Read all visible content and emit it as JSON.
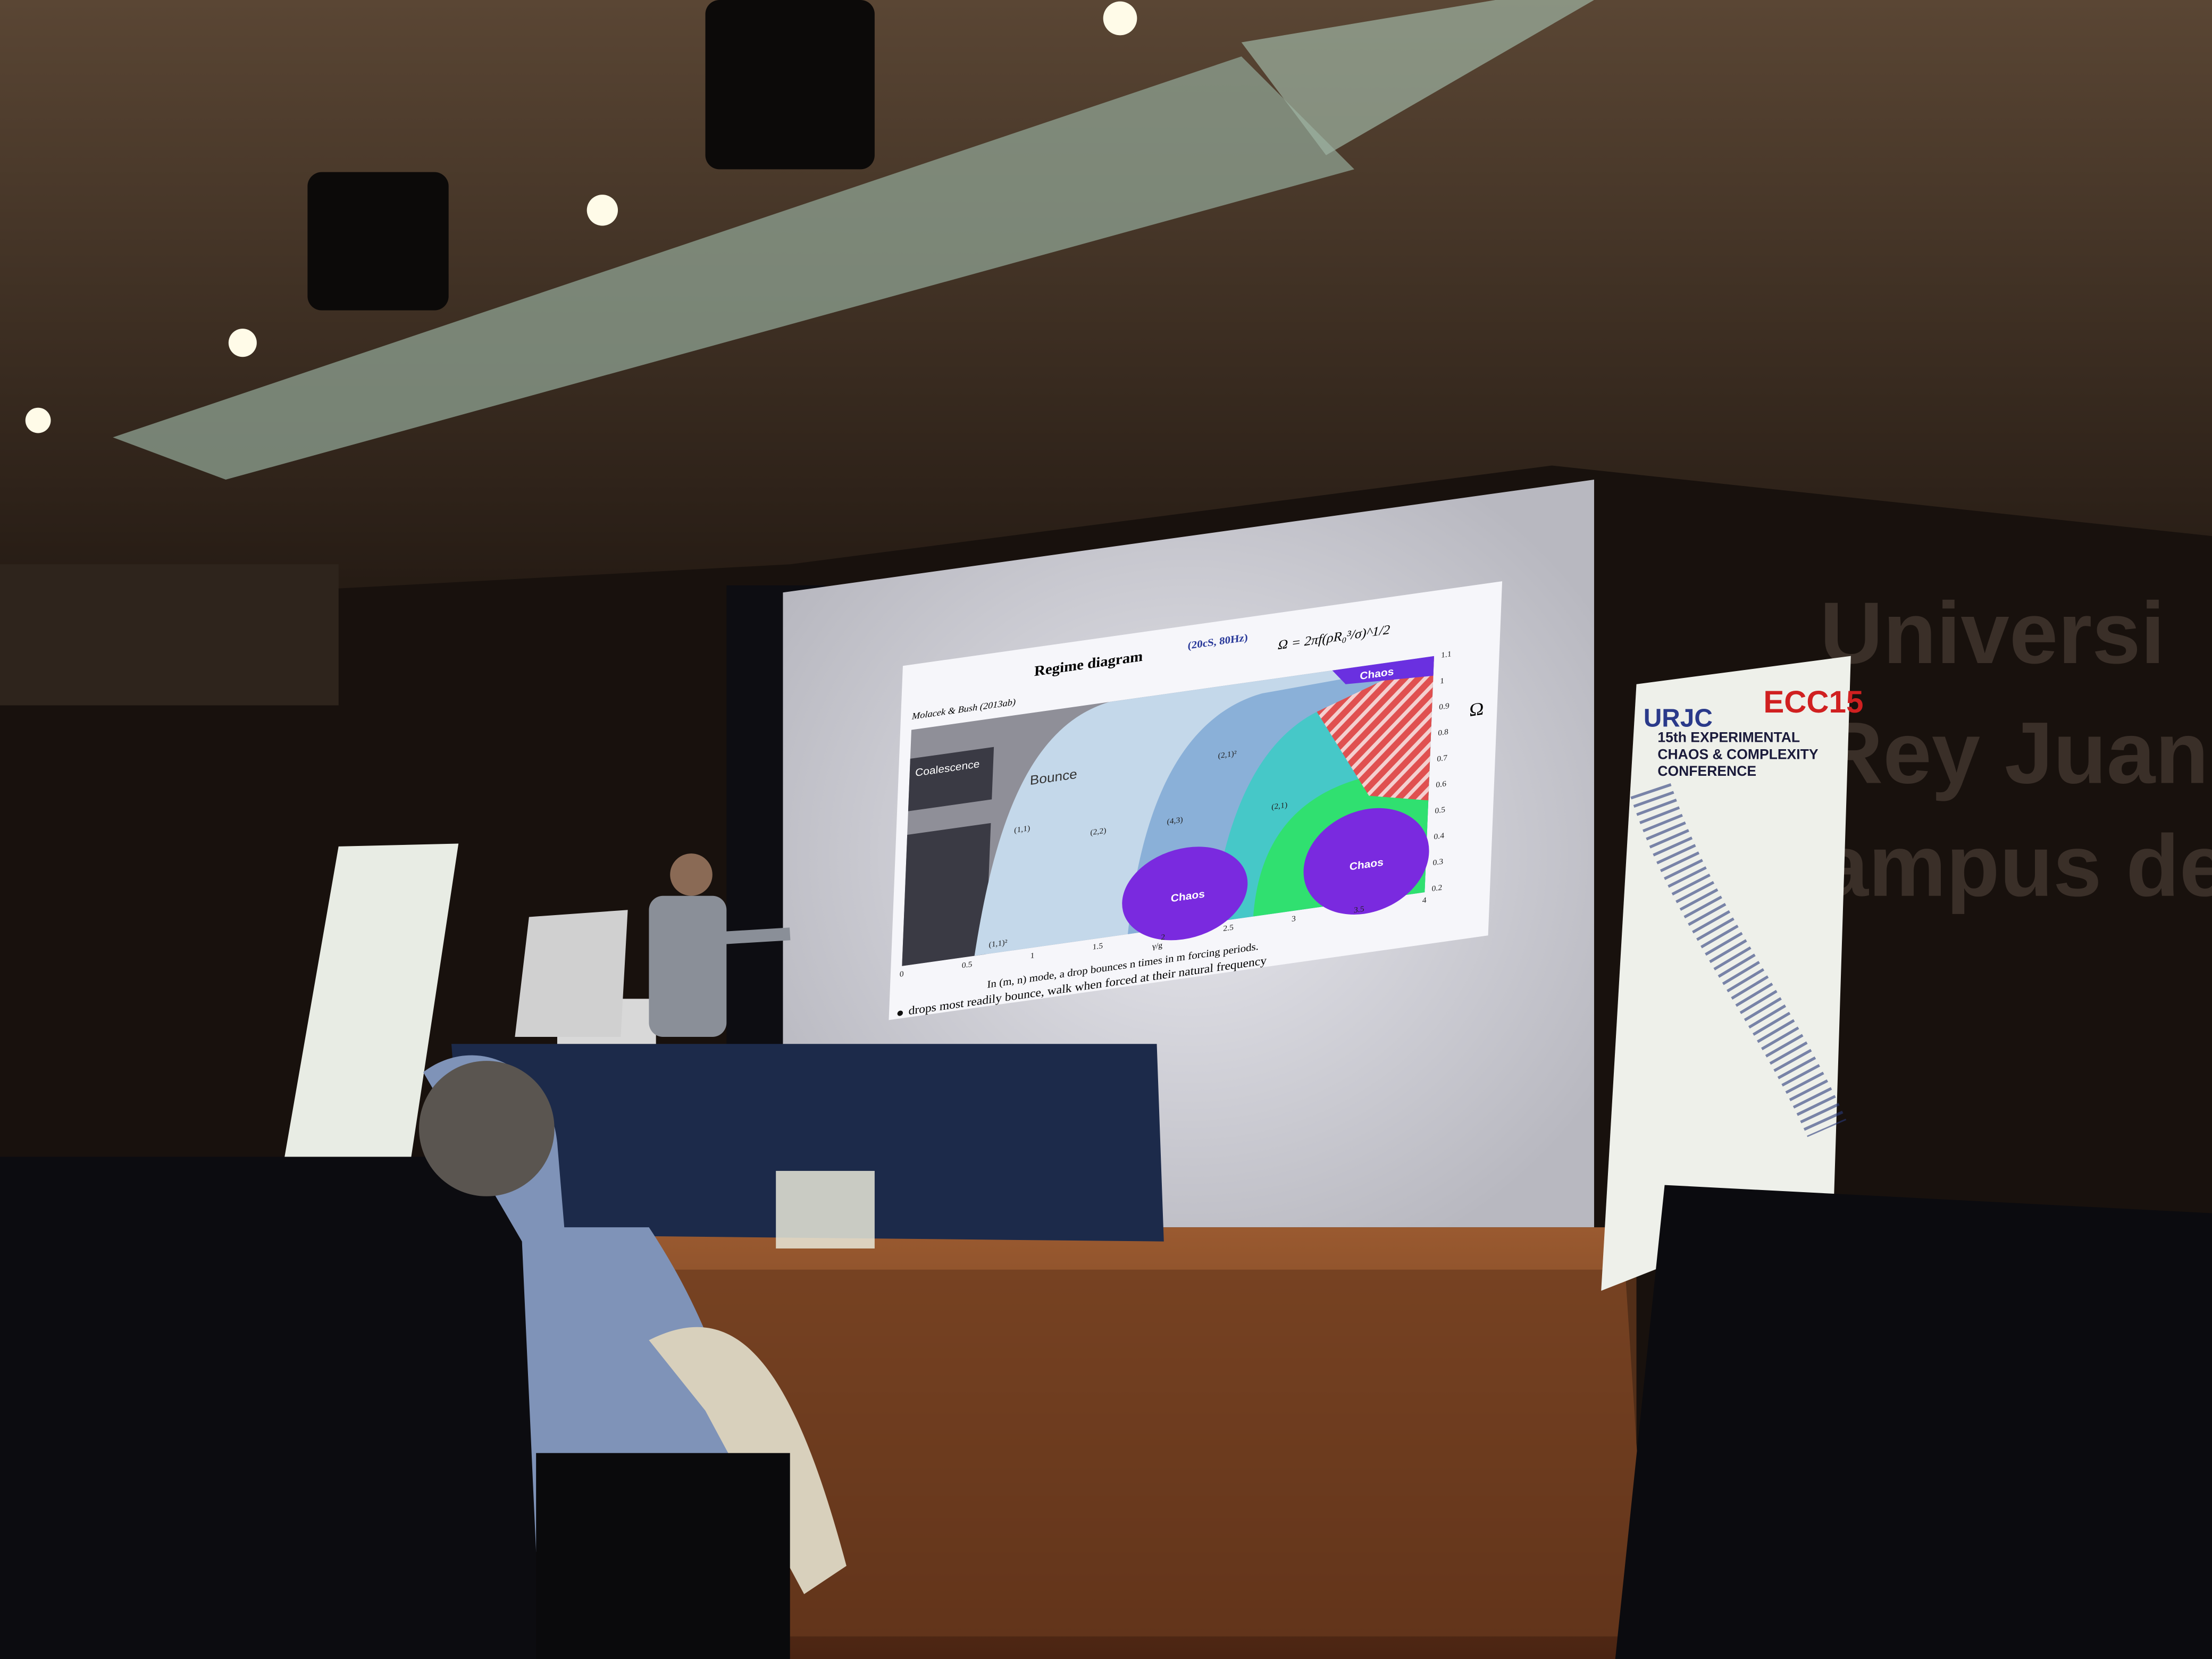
{
  "slide": {
    "title": "Regime diagram",
    "conditions": "(20cS, 80Hz)",
    "formula": "Ω = 2πf(ρR₀³/σ)^1/2",
    "citation": "Molacek & Bush (2013ab)",
    "regions": [
      "Coalescence",
      "Bounce",
      "Chaos",
      "Chaos",
      "Chaos"
    ],
    "modes": [
      "(1,1)",
      "(2,2)",
      "(4,3)",
      "(2,1)²",
      "(1,1)²",
      "(2,1)"
    ],
    "x_ticks": [
      "0",
      "0.5",
      "1",
      "1.5",
      "2",
      "2.5",
      "3",
      "3.5",
      "4"
    ],
    "y_ticks": [
      "1.1",
      "1",
      "0.9",
      "0.8",
      "0.7",
      "0.6",
      "0.5",
      "0.4",
      "0.3",
      "0.2"
    ],
    "x_label": "γ/g",
    "y_label": "Ω",
    "caption": "In (m, n) mode, a drop bounces n times in m forcing periods.",
    "bullet": "drops most readily bounce, walk when forced at their natural frequency"
  },
  "banner": {
    "logo": "URJC",
    "brand": "ECC15",
    "title": "15th EXPERIMENTAL CHAOS & COMPLEXITY CONFERENCE"
  },
  "wall_sign": [
    "Universi",
    "Rey Juan",
    "ampus de"
  ]
}
